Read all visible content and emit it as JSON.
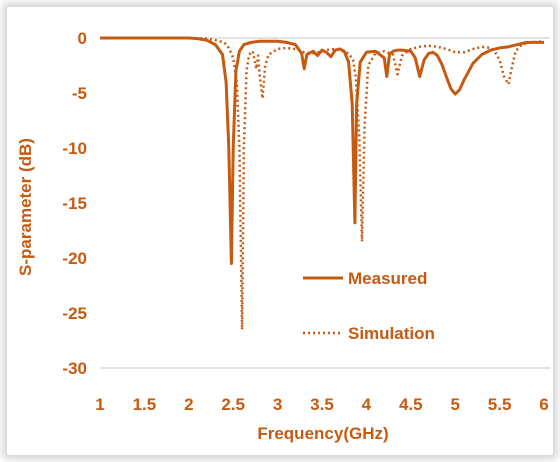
{
  "chart_data": {
    "type": "line",
    "title": "",
    "xlabel": "Frequency(GHz)",
    "ylabel": "S-parameter (dB)",
    "xlim": [
      1,
      6
    ],
    "ylim": [
      -30,
      0
    ],
    "x_ticks": [
      "1",
      "1.5",
      "2",
      "2.5",
      "3",
      "3.5",
      "4",
      "4.5",
      "5",
      "5.5",
      "6"
    ],
    "y_ticks": [
      "0",
      "-5",
      "-10",
      "-15",
      "-20",
      "-25",
      "-30"
    ],
    "grid": false,
    "legend_position": "center-right",
    "series": [
      {
        "name": "Measured",
        "style": "solid",
        "color": "#c55a11",
        "points": [
          [
            1.0,
            0
          ],
          [
            1.5,
            0
          ],
          [
            2.0,
            0
          ],
          [
            2.1,
            -0.05
          ],
          [
            2.2,
            -0.2
          ],
          [
            2.3,
            -0.6
          ],
          [
            2.38,
            -1.5
          ],
          [
            2.42,
            -4
          ],
          [
            2.45,
            -10
          ],
          [
            2.48,
            -20.5
          ],
          [
            2.5,
            -10
          ],
          [
            2.53,
            -3
          ],
          [
            2.57,
            -1.2
          ],
          [
            2.62,
            -0.6
          ],
          [
            2.7,
            -0.4
          ],
          [
            2.8,
            -0.3
          ],
          [
            2.9,
            -0.3
          ],
          [
            3.0,
            -0.3
          ],
          [
            3.1,
            -0.4
          ],
          [
            3.2,
            -0.6
          ],
          [
            3.27,
            -1.4
          ],
          [
            3.3,
            -2.8
          ],
          [
            3.33,
            -1.5
          ],
          [
            3.4,
            -1.2
          ],
          [
            3.45,
            -1.6
          ],
          [
            3.5,
            -1.1
          ],
          [
            3.55,
            -1.3
          ],
          [
            3.6,
            -1.7
          ],
          [
            3.65,
            -1.1
          ],
          [
            3.7,
            -1.0
          ],
          [
            3.75,
            -1.2
          ],
          [
            3.8,
            -2.2
          ],
          [
            3.84,
            -6
          ],
          [
            3.87,
            -16.8
          ],
          [
            3.89,
            -6
          ],
          [
            3.93,
            -2.2
          ],
          [
            4.0,
            -1.3
          ],
          [
            4.1,
            -1.2
          ],
          [
            4.15,
            -1.5
          ],
          [
            4.2,
            -1.8
          ],
          [
            4.23,
            -3.5
          ],
          [
            4.26,
            -1.5
          ],
          [
            4.3,
            -1.2
          ],
          [
            4.35,
            -1.1
          ],
          [
            4.4,
            -1.1
          ],
          [
            4.5,
            -1.2
          ],
          [
            4.55,
            -1.8
          ],
          [
            4.6,
            -3.5
          ],
          [
            4.65,
            -2.0
          ],
          [
            4.7,
            -1.4
          ],
          [
            4.75,
            -1.3
          ],
          [
            4.8,
            -1.6
          ],
          [
            4.85,
            -2.4
          ],
          [
            4.9,
            -3.5
          ],
          [
            4.95,
            -4.6
          ],
          [
            5.0,
            -5.1
          ],
          [
            5.05,
            -4.7
          ],
          [
            5.1,
            -3.8
          ],
          [
            5.2,
            -2.3
          ],
          [
            5.3,
            -1.5
          ],
          [
            5.4,
            -1.1
          ],
          [
            5.5,
            -0.9
          ],
          [
            5.6,
            -0.8
          ],
          [
            5.7,
            -0.6
          ],
          [
            5.8,
            -0.4
          ],
          [
            6.0,
            -0.4
          ]
        ]
      },
      {
        "name": "Simulation",
        "style": "dotted",
        "color": "#c55a11",
        "points": [
          [
            1.0,
            0
          ],
          [
            2.0,
            0
          ],
          [
            2.2,
            -0.05
          ],
          [
            2.3,
            -0.2
          ],
          [
            2.4,
            -0.4
          ],
          [
            2.45,
            -0.9
          ],
          [
            2.5,
            -1.8
          ],
          [
            2.54,
            -4
          ],
          [
            2.57,
            -10
          ],
          [
            2.6,
            -26.5
          ],
          [
            2.62,
            -10
          ],
          [
            2.65,
            -3
          ],
          [
            2.68,
            -1.5
          ],
          [
            2.72,
            -1.2
          ],
          [
            2.76,
            -2.8
          ],
          [
            2.78,
            -1.6
          ],
          [
            2.8,
            -3.5
          ],
          [
            2.83,
            -5.5
          ],
          [
            2.86,
            -2.5
          ],
          [
            2.9,
            -1.5
          ],
          [
            3.0,
            -1.0
          ],
          [
            3.1,
            -0.9
          ],
          [
            3.2,
            -1.0
          ],
          [
            3.3,
            -1.3
          ],
          [
            3.4,
            -1.4
          ],
          [
            3.5,
            -1.2
          ],
          [
            3.6,
            -1.0
          ],
          [
            3.7,
            -1.1
          ],
          [
            3.8,
            -1.4
          ],
          [
            3.85,
            -2.0
          ],
          [
            3.88,
            -3.5
          ],
          [
            3.92,
            -9
          ],
          [
            3.95,
            -18.5
          ],
          [
            3.98,
            -8
          ],
          [
            4.02,
            -2.5
          ],
          [
            4.1,
            -1.4
          ],
          [
            4.2,
            -1.2
          ],
          [
            4.3,
            -1.5
          ],
          [
            4.35,
            -3.3
          ],
          [
            4.4,
            -1.6
          ],
          [
            4.5,
            -1.0
          ],
          [
            4.6,
            -0.8
          ],
          [
            4.7,
            -0.7
          ],
          [
            4.8,
            -0.8
          ],
          [
            4.9,
            -1.0
          ],
          [
            5.0,
            -1.3
          ],
          [
            5.1,
            -1.3
          ],
          [
            5.2,
            -1.0
          ],
          [
            5.3,
            -0.8
          ],
          [
            5.4,
            -0.9
          ],
          [
            5.45,
            -1.3
          ],
          [
            5.5,
            -2.0
          ],
          [
            5.55,
            -3.5
          ],
          [
            5.6,
            -4.2
          ],
          [
            5.63,
            -3.0
          ],
          [
            5.68,
            -1.2
          ],
          [
            5.75,
            -0.6
          ],
          [
            5.85,
            -0.4
          ],
          [
            6.0,
            -0.3
          ]
        ]
      }
    ]
  }
}
